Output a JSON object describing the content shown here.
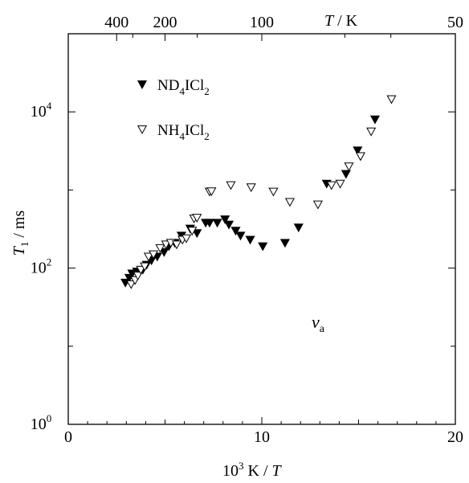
{
  "chart_data": {
    "type": "scatter",
    "xlabel": {
      "base": "10",
      "sup": "3",
      "rest": " K / ",
      "italic": "T"
    },
    "ylabel": {
      "italic": "T",
      "sub": "1",
      "rest": " / ms"
    },
    "top_axis_label": {
      "italic": "T",
      "rest": " / K"
    },
    "annotation": {
      "italic": "ν",
      "sub": "a"
    },
    "xlim": [
      0,
      20
    ],
    "ylim": [
      1,
      100000
    ],
    "y_scale": "log",
    "x_ticks": [
      "0",
      "10",
      "20"
    ],
    "y_ticks": [
      {
        "value": 1,
        "base": "10",
        "exp": "0"
      },
      {
        "value": 100,
        "base": "10",
        "exp": "2"
      },
      {
        "value": 10000,
        "base": "10",
        "exp": "4"
      }
    ],
    "top_ticks": [
      {
        "T": 400,
        "label": "400"
      },
      {
        "T": 200,
        "label": "200"
      },
      {
        "T": 100,
        "label": "100"
      },
      {
        "T": 50,
        "label": "50"
      }
    ],
    "series": [
      {
        "name": {
          "a": "ND",
          "sub1": "4",
          "b": "ICl",
          "sub2": "2"
        },
        "marker": "filled-down-triangle",
        "points": [
          [
            2.95,
            65
          ],
          [
            3.15,
            75
          ],
          [
            3.3,
            85
          ],
          [
            3.55,
            90
          ],
          [
            3.85,
            95
          ],
          [
            4.05,
            110
          ],
          [
            4.3,
            125
          ],
          [
            4.6,
            140
          ],
          [
            4.95,
            160
          ],
          [
            5.2,
            190
          ],
          [
            5.5,
            210
          ],
          [
            5.85,
            260
          ],
          [
            6.3,
            320
          ],
          [
            6.65,
            280
          ],
          [
            7.1,
            380
          ],
          [
            7.3,
            380
          ],
          [
            7.7,
            380
          ],
          [
            8.1,
            420
          ],
          [
            8.3,
            360
          ],
          [
            8.65,
            300
          ],
          [
            8.9,
            260
          ],
          [
            9.4,
            230
          ],
          [
            10.05,
            190
          ],
          [
            11.2,
            210
          ],
          [
            11.9,
            330
          ],
          [
            13.35,
            1200
          ],
          [
            14.35,
            1600
          ],
          [
            14.95,
            3200
          ],
          [
            15.85,
            8000
          ]
        ]
      },
      {
        "name": {
          "a": "NH",
          "sub1": "4",
          "b": "ICl",
          "sub2": "2"
        },
        "marker": "open-down-triangle",
        "points": [
          [
            3.25,
            62
          ],
          [
            3.45,
            70
          ],
          [
            3.6,
            80
          ],
          [
            3.75,
            95
          ],
          [
            3.95,
            105
          ],
          [
            4.15,
            140
          ],
          [
            4.4,
            150
          ],
          [
            4.75,
            180
          ],
          [
            5.05,
            200
          ],
          [
            5.3,
            210
          ],
          [
            5.6,
            200
          ],
          [
            5.9,
            230
          ],
          [
            6.1,
            240
          ],
          [
            6.4,
            300
          ],
          [
            6.5,
            430
          ],
          [
            6.65,
            440
          ],
          [
            7.3,
            950
          ],
          [
            7.4,
            960
          ],
          [
            8.4,
            1150
          ],
          [
            9.45,
            1080
          ],
          [
            10.6,
            950
          ],
          [
            11.45,
            700
          ],
          [
            12.9,
            650
          ],
          [
            13.6,
            1150
          ],
          [
            14.05,
            1200
          ],
          [
            14.5,
            2000
          ],
          [
            15.1,
            2700
          ],
          [
            15.65,
            5600
          ],
          [
            16.7,
            14500
          ]
        ]
      }
    ]
  }
}
